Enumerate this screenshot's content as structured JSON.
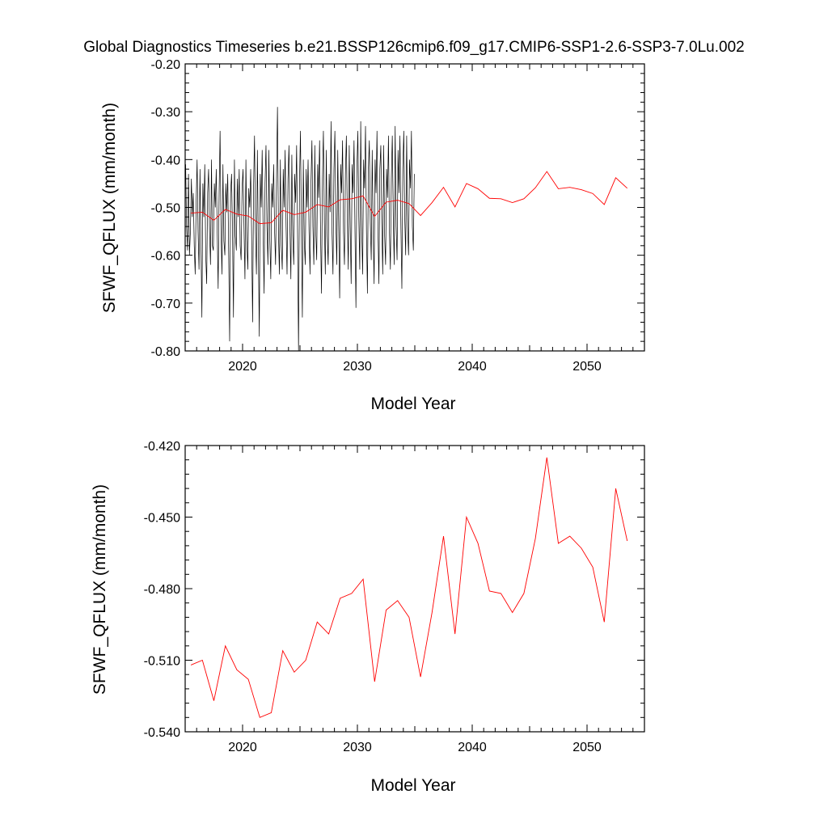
{
  "title": "Global Diagnostics Timeseries b.e21.BSSP126cmip6.f09_g17.CMIP6-SSP1-2.6-SSP3-7.0Lu.002",
  "colors": {
    "monthly": "#000000",
    "annual": "#ff0000",
    "axis": "#000000"
  },
  "chart_data": [
    {
      "type": "line",
      "xlabel": "Model Year",
      "ylabel": "SFWF_QFLUX (mm/month)",
      "xlim": [
        2015,
        2055
      ],
      "ylim": [
        -0.8,
        -0.2
      ],
      "yticks": [
        "-0.20",
        "-0.30",
        "-0.40",
        "-0.50",
        "-0.60",
        "-0.70",
        "-0.80"
      ],
      "xticks": [
        "2020",
        "2030",
        "2040",
        "2050"
      ],
      "series": [
        {
          "name": "",
          "resolution": "monthly",
          "color": "#000000",
          "x_start": 2015.04,
          "x_step": 0.08333,
          "values": [
            -0.41,
            -0.54,
            -0.59,
            -0.43,
            -0.6,
            -0.55,
            -0.44,
            -0.52,
            -0.47,
            -0.58,
            -0.64,
            -0.49,
            -0.4,
            -0.55,
            -0.63,
            -0.42,
            -0.57,
            -0.73,
            -0.45,
            -0.52,
            -0.41,
            -0.6,
            -0.66,
            -0.47,
            -0.42,
            -0.55,
            -0.62,
            -0.4,
            -0.58,
            -0.59,
            -0.45,
            -0.5,
            -0.42,
            -0.55,
            -0.67,
            -0.47,
            -0.34,
            -0.55,
            -0.64,
            -0.41,
            -0.57,
            -0.6,
            -0.45,
            -0.51,
            -0.43,
            -0.6,
            -0.78,
            -0.47,
            -0.43,
            -0.55,
            -0.73,
            -0.4,
            -0.56,
            -0.59,
            -0.44,
            -0.52,
            -0.42,
            -0.58,
            -0.61,
            -0.46,
            -0.42,
            -0.54,
            -0.65,
            -0.4,
            -0.57,
            -0.63,
            -0.46,
            -0.5,
            -0.42,
            -0.56,
            -0.74,
            -0.46,
            -0.35,
            -0.55,
            -0.64,
            -0.38,
            -0.58,
            -0.77,
            -0.43,
            -0.5,
            -0.38,
            -0.55,
            -0.68,
            -0.45,
            -0.37,
            -0.54,
            -0.62,
            -0.38,
            -0.57,
            -0.65,
            -0.45,
            -0.5,
            -0.41,
            -0.55,
            -0.62,
            -0.44,
            -0.29,
            -0.55,
            -0.64,
            -0.4,
            -0.58,
            -0.63,
            -0.42,
            -0.5,
            -0.38,
            -0.54,
            -0.64,
            -0.44,
            -0.37,
            -0.54,
            -0.65,
            -0.39,
            -0.56,
            -0.62,
            -0.43,
            -0.49,
            -0.37,
            -0.56,
            -0.8,
            -0.45,
            -0.34,
            -0.55,
            -0.73,
            -0.4,
            -0.57,
            -0.62,
            -0.42,
            -0.5,
            -0.4,
            -0.55,
            -0.64,
            -0.45,
            -0.36,
            -0.54,
            -0.62,
            -0.37,
            -0.55,
            -0.61,
            -0.41,
            -0.48,
            -0.36,
            -0.55,
            -0.68,
            -0.44,
            -0.34,
            -0.53,
            -0.64,
            -0.38,
            -0.56,
            -0.62,
            -0.43,
            -0.51,
            -0.32,
            -0.55,
            -0.64,
            -0.42,
            -0.34,
            -0.53,
            -0.62,
            -0.38,
            -0.54,
            -0.69,
            -0.41,
            -0.47,
            -0.36,
            -0.55,
            -0.62,
            -0.43,
            -0.35,
            -0.52,
            -0.63,
            -0.37,
            -0.54,
            -0.66,
            -0.41,
            -0.47,
            -0.36,
            -0.55,
            -0.71,
            -0.42,
            -0.34,
            -0.52,
            -0.63,
            -0.32,
            -0.54,
            -0.64,
            -0.4,
            -0.46,
            -0.33,
            -0.55,
            -0.68,
            -0.42,
            -0.36,
            -0.53,
            -0.61,
            -0.38,
            -0.55,
            -0.66,
            -0.4,
            -0.47,
            -0.34,
            -0.54,
            -0.66,
            -0.42,
            -0.37,
            -0.53,
            -0.64,
            -0.37,
            -0.56,
            -0.62,
            -0.42,
            -0.48,
            -0.35,
            -0.55,
            -0.63,
            -0.44,
            -0.35,
            -0.52,
            -0.62,
            -0.33,
            -0.54,
            -0.61,
            -0.38,
            -0.47,
            -0.35,
            -0.54,
            -0.67,
            -0.42,
            -0.34,
            -0.52,
            -0.6,
            -0.35,
            -0.54,
            -0.6,
            -0.4,
            -0.46,
            -0.34,
            -0.54,
            -0.59,
            -0.43
          ]
        },
        {
          "name": "",
          "resolution": "annual",
          "color": "#ff0000",
          "x": [
            2015.5,
            2016.5,
            2017.5,
            2018.5,
            2019.5,
            2020.5,
            2021.5,
            2022.5,
            2023.5,
            2024.5,
            2025.5,
            2026.5,
            2027.5,
            2028.5,
            2029.5,
            2030.5,
            2031.5,
            2032.5,
            2033.5,
            2034.5,
            2035.5,
            2036.5,
            2037.5,
            2038.5,
            2039.5,
            2040.5,
            2041.5,
            2042.5,
            2043.5,
            2044.5,
            2045.5,
            2046.5,
            2047.5,
            2048.5,
            2049.5,
            2050.5,
            2051.5,
            2052.5,
            2053.5
          ],
          "values": [
            -0.512,
            -0.51,
            -0.527,
            -0.504,
            -0.514,
            -0.518,
            -0.534,
            -0.532,
            -0.506,
            -0.515,
            -0.51,
            -0.494,
            -0.499,
            -0.484,
            -0.482,
            -0.476,
            -0.519,
            -0.489,
            -0.485,
            -0.492,
            -0.517,
            -0.49,
            -0.458,
            -0.499,
            -0.45,
            -0.461,
            -0.481,
            -0.482,
            -0.49,
            -0.482,
            -0.459,
            -0.425,
            -0.461,
            -0.458,
            -0.463,
            -0.471,
            -0.494,
            -0.438,
            -0.46
          ]
        }
      ]
    },
    {
      "type": "line",
      "xlabel": "Model Year",
      "ylabel": "SFWF_QFLUX (mm/month)",
      "xlim": [
        2015,
        2055
      ],
      "ylim": [
        -0.54,
        -0.42
      ],
      "yticks": [
        "-0.420",
        "-0.450",
        "-0.480",
        "-0.510",
        "-0.540"
      ],
      "xticks": [
        "2020",
        "2030",
        "2040",
        "2050"
      ],
      "series": [
        {
          "name": "",
          "resolution": "annual",
          "color": "#ff0000",
          "x": [
            2015.5,
            2016.5,
            2017.5,
            2018.5,
            2019.5,
            2020.5,
            2021.5,
            2022.5,
            2023.5,
            2024.5,
            2025.5,
            2026.5,
            2027.5,
            2028.5,
            2029.5,
            2030.5,
            2031.5,
            2032.5,
            2033.5,
            2034.5,
            2035.5,
            2036.5,
            2037.5,
            2038.5,
            2039.5,
            2040.5,
            2041.5,
            2042.5,
            2043.5,
            2044.5,
            2045.5,
            2046.5,
            2047.5,
            2048.5,
            2049.5,
            2050.5,
            2051.5,
            2052.5,
            2053.5
          ],
          "values": [
            -0.512,
            -0.51,
            -0.527,
            -0.504,
            -0.514,
            -0.518,
            -0.534,
            -0.532,
            -0.506,
            -0.515,
            -0.51,
            -0.494,
            -0.499,
            -0.484,
            -0.482,
            -0.476,
            -0.519,
            -0.489,
            -0.485,
            -0.492,
            -0.517,
            -0.49,
            -0.458,
            -0.499,
            -0.45,
            -0.461,
            -0.481,
            -0.482,
            -0.49,
            -0.482,
            -0.459,
            -0.425,
            -0.461,
            -0.458,
            -0.463,
            -0.471,
            -0.494,
            -0.438,
            -0.46
          ]
        }
      ]
    }
  ]
}
